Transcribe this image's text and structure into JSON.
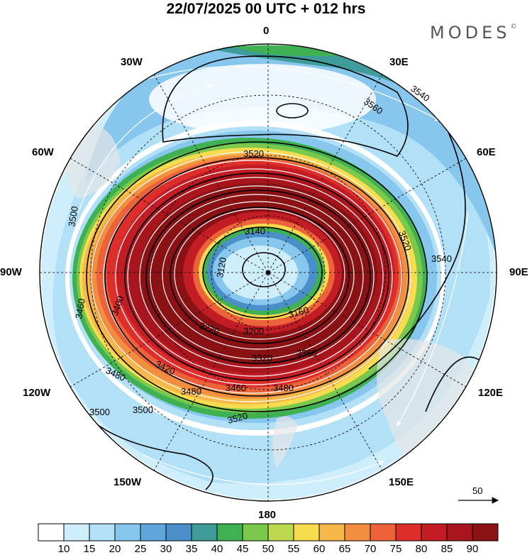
{
  "title": "22/07/2025  00 UTC  + 012 hrs",
  "logo": "MODES",
  "longitudes": {
    "lon_0": "0",
    "lon_30e": "30E",
    "lon_30w": "30W",
    "lon_60e": "60E",
    "lon_60w": "60W",
    "lon_90e": "90E",
    "lon_90w": "90W",
    "lon_120e": "120E",
    "lon_120w": "120W",
    "lon_150e": "150E",
    "lon_150w": "150W",
    "lon_180": "180"
  },
  "contour_labels": [
    "3540",
    "3560",
    "3520",
    "3500",
    "3140",
    "3120",
    "3540",
    "3460",
    "3400",
    "3160",
    "3200",
    "3220",
    "3320",
    "3360",
    "3420",
    "3480",
    "3480",
    "3460",
    "3480",
    "3500",
    "3500",
    "3520",
    "3520"
  ],
  "reference_vector": "50",
  "colorbar": {
    "ticks": [
      "10",
      "15",
      "20",
      "25",
      "30",
      "35",
      "40",
      "45",
      "50",
      "55",
      "60",
      "65",
      "70",
      "75",
      "80",
      "85",
      "90"
    ],
    "colors": [
      "#ffffff",
      "#cfeefc",
      "#b2e0f7",
      "#87c7ee",
      "#5ea6dc",
      "#4a8fc8",
      "#409c9a",
      "#3fb153",
      "#7bc94c",
      "#bcd94e",
      "#f8dc4f",
      "#f7b84a",
      "#f28e40",
      "#ec623a",
      "#de2e2b",
      "#c21c24",
      "#a8151c",
      "#8a1114"
    ]
  }
}
